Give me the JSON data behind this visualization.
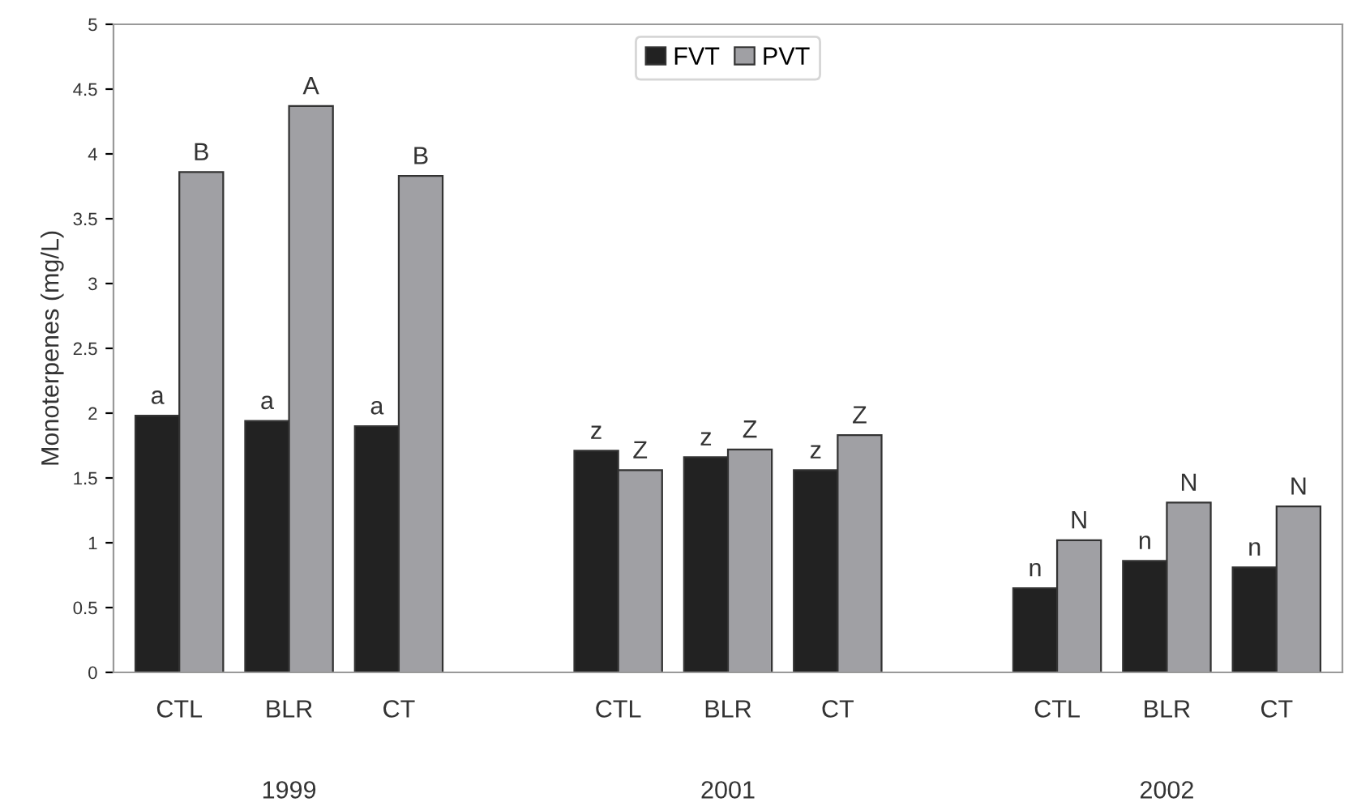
{
  "chart_data": {
    "type": "bar",
    "ylabel": "Monoterpenes (mg/L)",
    "categories": [
      "CTL",
      "BLR",
      "CT",
      null,
      "CTL",
      "BLR",
      "CT",
      null,
      "CTL",
      "BLR",
      "CT"
    ],
    "series": [
      {
        "name": "FVT",
        "color": "#222222",
        "values": [
          1.98,
          1.94,
          1.9,
          null,
          1.71,
          1.66,
          1.56,
          null,
          0.65,
          0.86,
          0.81
        ],
        "value_labels": [
          "a",
          "a",
          "a",
          null,
          "z",
          "z",
          "z",
          null,
          "n",
          "n",
          "n"
        ]
      },
      {
        "name": "PVT",
        "color": "#a0a0a4",
        "values": [
          3.86,
          4.37,
          3.83,
          null,
          1.56,
          1.72,
          1.83,
          null,
          1.02,
          1.31,
          1.28
        ],
        "value_labels": [
          "B",
          "A",
          "B",
          null,
          "Z",
          "Z",
          "Z",
          null,
          "N",
          "N",
          "N"
        ]
      }
    ],
    "annotations": [
      "1999",
      "2001",
      "2002"
    ],
    "ylim": [
      0,
      5
    ],
    "yticks": [
      0,
      0.5,
      1,
      1.5,
      2,
      2.5,
      3,
      3.5,
      4,
      4.5,
      5
    ],
    "grid": false,
    "legend": "top"
  }
}
